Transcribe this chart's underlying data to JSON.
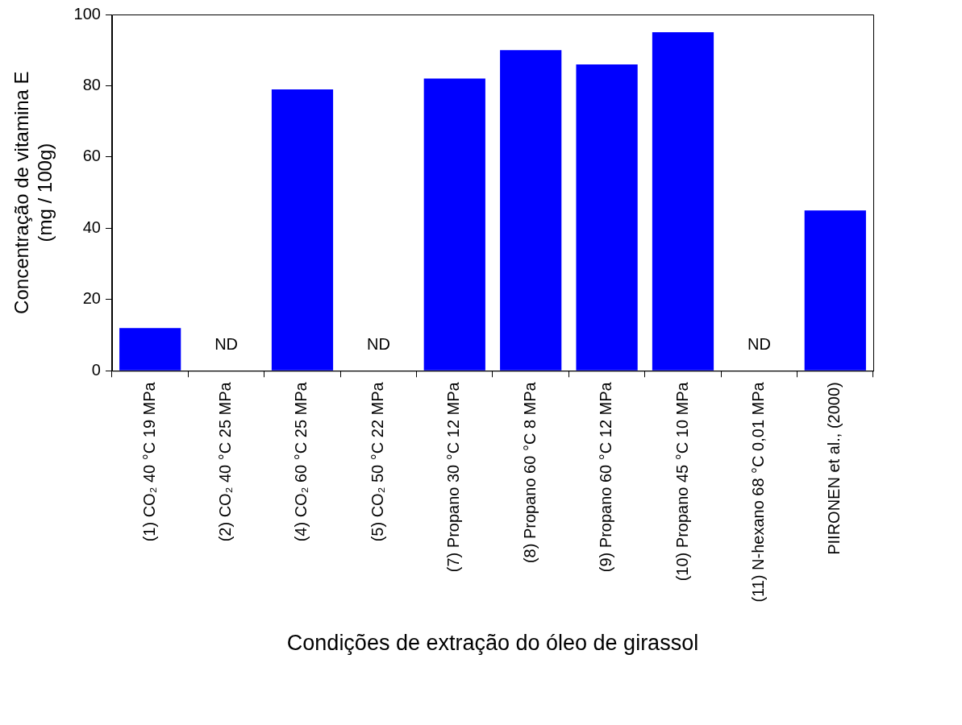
{
  "chart_data": {
    "type": "bar",
    "xlabel": "Condições de extração do óleo de girassol",
    "ylabel": "Concentração de vitamina E\n(mg / 100g)",
    "categories": [
      "(1) CO₂ 40 °C 19 MPa",
      "(2) CO₂ 40 °C 25 MPa",
      "(4) CO₂ 60 °C 25 MPa",
      "(5) CO₂ 50 °C 22 MPa",
      "(7) Propano 30 °C 12 MPa",
      "(8) Propano 60 °C 8 MPa",
      "(9) Propano 60 °C 12 MPa",
      "(10) Propano 45 °C 10 MPa",
      "(11) N-hexano 68 °C 0,01 MPa",
      "PIIRONEN et al., (2000)"
    ],
    "values": [
      12,
      null,
      79,
      null,
      82,
      90,
      86,
      95,
      null,
      45
    ],
    "color": "#0000ff",
    "ylim": [
      0,
      100
    ],
    "yticks": [
      0,
      20,
      40,
      60,
      80,
      100
    ],
    "grid": false,
    "legend": false,
    "annotations": [
      "ND",
      "ND",
      "ND"
    ]
  }
}
